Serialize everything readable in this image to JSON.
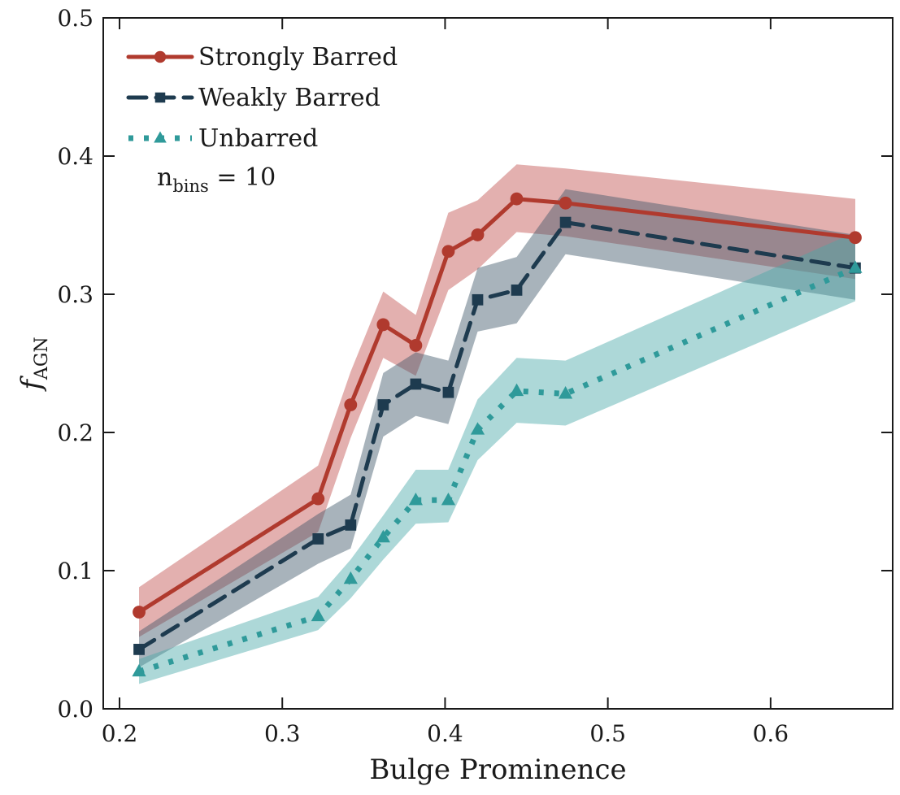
{
  "chart_data": {
    "type": "line",
    "xlabel": "Bulge Prominence",
    "ylabel": {
      "main": "f",
      "sub": "AGN"
    },
    "xlim": [
      0.19,
      0.675
    ],
    "ylim": [
      0.0,
      0.5
    ],
    "xticks": [
      0.2,
      0.3,
      0.4,
      0.5,
      0.6
    ],
    "xtick_labels": [
      "0.2",
      "0.3",
      "0.4",
      "0.5",
      "0.6"
    ],
    "yticks": [
      0.0,
      0.1,
      0.2,
      0.3,
      0.4,
      0.5
    ],
    "ytick_labels": [
      "0.0",
      "0.1",
      "0.2",
      "0.3",
      "0.4",
      "0.5"
    ],
    "grid": false,
    "legend_placement": "top-left",
    "annotation": {
      "main": "n",
      "sub": "bins",
      "rest": " = 10"
    },
    "series": [
      {
        "name": "Strongly Barred",
        "color": "#b03a2e",
        "band_color": "#c0504d",
        "linestyle": "solid",
        "marker": "circle",
        "x": [
          0.212,
          0.322,
          0.342,
          0.362,
          0.382,
          0.402,
          0.42,
          0.444,
          0.474,
          0.652
        ],
        "y": [
          0.07,
          0.152,
          0.22,
          0.278,
          0.263,
          0.331,
          0.343,
          0.369,
          0.366,
          0.341
        ],
        "lower": [
          0.052,
          0.128,
          0.196,
          0.254,
          0.241,
          0.303,
          0.318,
          0.345,
          0.342,
          0.311
        ],
        "upper": [
          0.088,
          0.176,
          0.244,
          0.302,
          0.285,
          0.359,
          0.368,
          0.394,
          0.391,
          0.369
        ]
      },
      {
        "name": "Weakly Barred",
        "color": "#1e3b4f",
        "band_color": "#3d5668",
        "linestyle": "dashed",
        "marker": "square",
        "x": [
          0.212,
          0.322,
          0.342,
          0.362,
          0.382,
          0.402,
          0.42,
          0.444,
          0.474,
          0.652
        ],
        "y": [
          0.043,
          0.123,
          0.133,
          0.22,
          0.235,
          0.229,
          0.296,
          0.303,
          0.352,
          0.319
        ],
        "lower": [
          0.03,
          0.105,
          0.116,
          0.197,
          0.212,
          0.206,
          0.273,
          0.279,
          0.329,
          0.296
        ],
        "upper": [
          0.056,
          0.141,
          0.155,
          0.243,
          0.258,
          0.252,
          0.319,
          0.327,
          0.376,
          0.343
        ]
      },
      {
        "name": "Unbarred",
        "color": "#2f9a9a",
        "band_color": "#4aa9a9",
        "linestyle": "dotted",
        "marker": "triangle",
        "x": [
          0.212,
          0.322,
          0.342,
          0.362,
          0.382,
          0.402,
          0.42,
          0.444,
          0.474,
          0.652
        ],
        "y": [
          0.027,
          0.067,
          0.094,
          0.124,
          0.151,
          0.151,
          0.202,
          0.23,
          0.228,
          0.319
        ],
        "lower": [
          0.018,
          0.057,
          0.08,
          0.108,
          0.134,
          0.135,
          0.18,
          0.207,
          0.205,
          0.295
        ],
        "upper": [
          0.036,
          0.081,
          0.108,
          0.14,
          0.173,
          0.173,
          0.224,
          0.254,
          0.252,
          0.345
        ]
      }
    ]
  }
}
